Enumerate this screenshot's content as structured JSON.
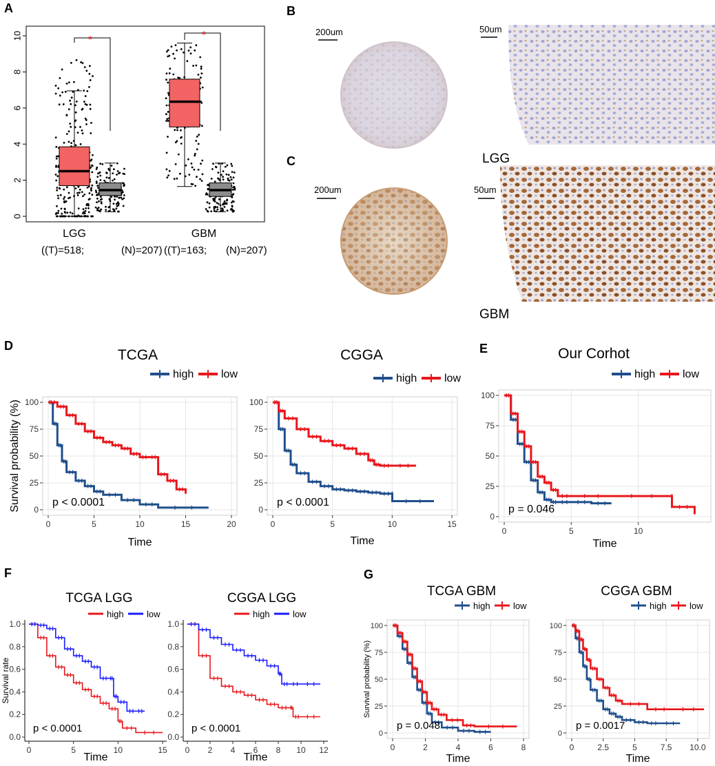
{
  "panel_letters": [
    "A",
    "B",
    "C",
    "D",
    "E",
    "F",
    "G"
  ],
  "colors": {
    "tumor_box": "#f26363",
    "normal_box": "#8c8c8c",
    "km_blue": "#1f4e8c",
    "km_red": "#e8161b",
    "km_blue2": "#1a1aff",
    "star": "#e8161b",
    "grid_bg": "#ffffff",
    "grid_line": "#e5e5e5"
  },
  "panel_a": {
    "y_ticks": [
      "0",
      "2",
      "4",
      "6",
      "8",
      "10"
    ],
    "groups": [
      {
        "label": "LGG",
        "count_label": "((T)=518;",
        "normal_count_label": "(N)=207)"
      },
      {
        "label": "GBM",
        "count_label": "((T)=163;",
        "normal_count_label": "(N)=207)"
      }
    ],
    "star": "*"
  },
  "panel_bc": {
    "scale_left": "200um",
    "scale_right": "50um",
    "lgg_label": "LGG",
    "gbm_label": "GBM"
  },
  "chart_data": [
    {
      "id": "A",
      "type": "box",
      "ylim": [
        0,
        10
      ],
      "categories": [
        "LGG T",
        "LGG N",
        "GBM T",
        "GBM N"
      ],
      "boxes": [
        {
          "name": "LGG tumor",
          "min": 0,
          "q1": 1.7,
          "median": 2.5,
          "q3": 3.85,
          "max": 6.95
        },
        {
          "name": "LGG normal",
          "min": 0.25,
          "q1": 1.15,
          "median": 1.45,
          "q3": 1.85,
          "max": 2.95
        },
        {
          "name": "GBM tumor",
          "min": 1.65,
          "q1": 4.95,
          "median": 6.35,
          "q3": 7.6,
          "max": 9.6
        },
        {
          "name": "GBM normal",
          "min": 0.25,
          "q1": 1.1,
          "median": 1.45,
          "q3": 1.85,
          "max": 2.95
        }
      ]
    },
    {
      "id": "D1",
      "type": "line",
      "title": "TCGA",
      "xlabel": "Time",
      "ylabel": "Survival probability (%)",
      "xlim": [
        0,
        20
      ],
      "ylim": [
        0,
        100
      ],
      "x_ticks": [
        "0",
        "5",
        "10",
        "15",
        "20"
      ],
      "y_ticks": [
        "0",
        "25",
        "50",
        "75",
        "100"
      ],
      "pvalue": "p < 0.0001",
      "legend": [
        "high",
        "low"
      ],
      "series": [
        {
          "name": "high",
          "x": [
            0,
            0.5,
            1,
            1.5,
            2,
            3,
            4,
            5,
            6,
            8,
            10,
            12,
            17.5
          ],
          "y": [
            100,
            80,
            60,
            45,
            35,
            27,
            22,
            17,
            14,
            9,
            5,
            2,
            2
          ]
        },
        {
          "name": "low",
          "x": [
            0,
            1,
            2,
            3,
            4,
            5,
            6,
            7,
            8,
            9,
            10,
            11,
            12,
            13,
            14,
            15
          ],
          "y": [
            100,
            96,
            88,
            80,
            73,
            67,
            63,
            60,
            57,
            52,
            49,
            49,
            33,
            27,
            19,
            15
          ]
        }
      ]
    },
    {
      "id": "D2",
      "type": "line",
      "title": "CGGA",
      "xlabel": "Time",
      "ylabel": "",
      "xlim": [
        0,
        15
      ],
      "ylim": [
        0,
        100
      ],
      "x_ticks": [
        "0",
        "5",
        "10",
        "15"
      ],
      "y_ticks": [
        "0",
        "25",
        "50",
        "75",
        "100"
      ],
      "pvalue": "p < 0.0001",
      "legend": [
        "high",
        "low"
      ],
      "series": [
        {
          "name": "high",
          "x": [
            0,
            0.5,
            1,
            1.5,
            2,
            3,
            4,
            5,
            6,
            7,
            8,
            9,
            10,
            10.01,
            13.5
          ],
          "y": [
            100,
            75,
            55,
            42,
            34,
            26,
            22,
            19,
            18,
            17,
            16,
            15,
            15,
            8,
            8
          ]
        },
        {
          "name": "low",
          "x": [
            0,
            0.5,
            1,
            2,
            3,
            4,
            5,
            6,
            7,
            8,
            8.5,
            9,
            10,
            12
          ],
          "y": [
            100,
            92,
            85,
            75,
            68,
            64,
            60,
            57,
            52,
            46,
            42,
            41,
            41,
            41
          ]
        }
      ]
    },
    {
      "id": "E",
      "type": "line",
      "title": "Our Corhot",
      "xlabel": "Time",
      "ylabel": "",
      "xlim": [
        0,
        15
      ],
      "ylim": [
        0,
        100
      ],
      "x_ticks": [
        "0",
        "5",
        "10"
      ],
      "y_ticks": [
        "0",
        "25",
        "50",
        "75",
        "100"
      ],
      "pvalue": "p = 0.046",
      "legend": [
        "high",
        "low"
      ],
      "series": [
        {
          "name": "high",
          "x": [
            0,
            0.5,
            1,
            1.5,
            2,
            2.5,
            3,
            3.5,
            4,
            5,
            6.5,
            8
          ],
          "y": [
            100,
            80,
            60,
            45,
            30,
            20,
            14,
            12,
            12,
            12,
            11,
            11
          ]
        },
        {
          "name": "low",
          "x": [
            0,
            0.5,
            1,
            1.5,
            2,
            2.5,
            3,
            3.5,
            4,
            5,
            8,
            12.5,
            12.51,
            14.2
          ],
          "y": [
            100,
            85,
            70,
            58,
            45,
            33,
            28,
            22,
            17,
            17,
            17,
            17,
            8,
            2
          ]
        }
      ]
    },
    {
      "id": "F1",
      "type": "line",
      "title": "TCGA LGG",
      "xlabel": "Time",
      "ylabel": "Survival rate",
      "xlim": [
        0,
        15
      ],
      "ylim": [
        0,
        1
      ],
      "x_ticks": [
        "0",
        "5",
        "10",
        "15"
      ],
      "y_ticks": [
        "0.0",
        "0.2",
        "0.4",
        "0.6",
        "0.8",
        "1.0"
      ],
      "pvalue": "p < 0.0001",
      "legend": [
        "high",
        "low"
      ],
      "series": [
        {
          "name": "high",
          "x": [
            0,
            1,
            2,
            3,
            4,
            5,
            6,
            7,
            8,
            9,
            10,
            10.5,
            12,
            15
          ],
          "y": [
            1,
            0.88,
            0.72,
            0.62,
            0.55,
            0.48,
            0.42,
            0.36,
            0.3,
            0.25,
            0.14,
            0.08,
            0.04,
            0.04
          ]
        },
        {
          "name": "low",
          "x": [
            0,
            1,
            2,
            3,
            4,
            5,
            6,
            7,
            8,
            9,
            9.5,
            10,
            11,
            12,
            13
          ],
          "y": [
            1,
            0.99,
            0.96,
            0.88,
            0.78,
            0.72,
            0.67,
            0.62,
            0.52,
            0.52,
            0.36,
            0.31,
            0.23,
            0.23,
            0.23
          ]
        }
      ]
    },
    {
      "id": "F2",
      "type": "line",
      "title": "CGGA LGG",
      "xlabel": "Time",
      "ylabel": "",
      "xlim": [
        0,
        12
      ],
      "ylim": [
        0,
        1
      ],
      "x_ticks": [
        "0",
        "2",
        "4",
        "6",
        "8",
        "10",
        "12"
      ],
      "y_ticks": [
        "0.0",
        "0.2",
        "0.4",
        "0.6",
        "0.8",
        "1.0"
      ],
      "pvalue": "p < 0.0001",
      "legend": [
        "high",
        "low"
      ],
      "series": [
        {
          "name": "high",
          "x": [
            0,
            1,
            2,
            3,
            4,
            5,
            6,
            7,
            8,
            9,
            9.3,
            10,
            11.7
          ],
          "y": [
            1,
            0.72,
            0.52,
            0.45,
            0.4,
            0.37,
            0.33,
            0.29,
            0.26,
            0.26,
            0.18,
            0.18,
            0.18
          ]
        },
        {
          "name": "low",
          "x": [
            0,
            1,
            2,
            3,
            4,
            5,
            6,
            7,
            8,
            8.3,
            9,
            10,
            11.7
          ],
          "y": [
            1,
            0.95,
            0.88,
            0.82,
            0.77,
            0.72,
            0.68,
            0.63,
            0.56,
            0.47,
            0.47,
            0.47,
            0.47
          ]
        }
      ]
    },
    {
      "id": "G1",
      "type": "line",
      "title": "TCGA GBM",
      "xlabel": "Time",
      "ylabel": "Survival probability (%)",
      "xlim": [
        0,
        8
      ],
      "ylim": [
        0,
        100
      ],
      "x_ticks": [
        "0",
        "2",
        "4",
        "6",
        "8"
      ],
      "y_ticks": [
        "0",
        "25",
        "50",
        "75",
        "100"
      ],
      "pvalue": "p = 0.048",
      "legend": [
        "high",
        "low"
      ],
      "series": [
        {
          "name": "high",
          "x": [
            0,
            0.3,
            0.6,
            0.9,
            1.2,
            1.5,
            1.8,
            2.1,
            2.4,
            3,
            4,
            5,
            6
          ],
          "y": [
            100,
            90,
            78,
            65,
            52,
            40,
            28,
            18,
            10,
            5,
            2,
            1,
            1
          ]
        },
        {
          "name": "low",
          "x": [
            0,
            0.3,
            0.6,
            0.9,
            1.2,
            1.5,
            1.8,
            2.1,
            2.4,
            2.8,
            3.3,
            4.3,
            5,
            7.6
          ],
          "y": [
            100,
            93,
            85,
            73,
            60,
            48,
            38,
            28,
            22,
            17,
            12,
            7,
            6,
            6
          ]
        }
      ]
    },
    {
      "id": "G2",
      "type": "line",
      "title": "CGGA GBM",
      "xlabel": "Time",
      "ylabel": "",
      "xlim": [
        0,
        10.5
      ],
      "ylim": [
        0,
        100
      ],
      "x_ticks": [
        "0",
        "2.5",
        "5",
        "7.5",
        "10.0"
      ],
      "y_ticks": [
        "0",
        "25",
        "50",
        "75",
        "100"
      ],
      "pvalue": "p = 0.0017",
      "legend": [
        "high",
        "low"
      ],
      "series": [
        {
          "name": "high",
          "x": [
            0,
            0.3,
            0.6,
            0.9,
            1.2,
            1.5,
            2,
            2.5,
            3,
            3.5,
            4,
            5,
            6,
            7,
            8.6
          ],
          "y": [
            100,
            88,
            75,
            62,
            50,
            40,
            30,
            22,
            18,
            15,
            12,
            10,
            9,
            9,
            9
          ]
        },
        {
          "name": "low",
          "x": [
            0,
            0.3,
            0.6,
            0.9,
            1.2,
            1.5,
            2,
            2.5,
            3,
            3.5,
            4,
            6,
            8,
            10.5
          ],
          "y": [
            100,
            95,
            87,
            78,
            68,
            60,
            50,
            42,
            35,
            30,
            27,
            22,
            22,
            22
          ]
        }
      ]
    }
  ]
}
